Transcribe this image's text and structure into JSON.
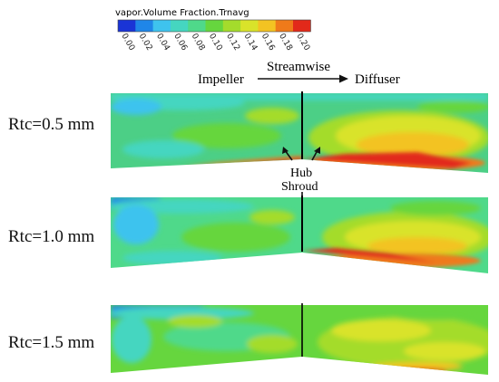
{
  "legend": {
    "title": "vapor.Volume Fraction.Trnavg",
    "ticks": [
      "0.00",
      "0.02",
      "0.04",
      "0.06",
      "0.08",
      "0.10",
      "0.12",
      "0.14",
      "0.16",
      "0.18",
      "0.20"
    ],
    "colors": [
      "#1a34d6",
      "#1f86e8",
      "#3ec3ee",
      "#45d6c0",
      "#4fd98a",
      "#66d63e",
      "#a4dc2c",
      "#d9e32a",
      "#f3c322",
      "#ef7a1a",
      "#e2291a"
    ]
  },
  "flow": {
    "left_label": "Impeller",
    "direction_label": "Streamwise",
    "right_label": "Diffuser"
  },
  "annotations": {
    "hub": "Hub",
    "shroud": "Shroud"
  },
  "cases": [
    {
      "label": "Rtc=0.5 mm"
    },
    {
      "label": "Rtc=1.0 mm"
    },
    {
      "label": "Rtc=1.5 mm"
    }
  ]
}
